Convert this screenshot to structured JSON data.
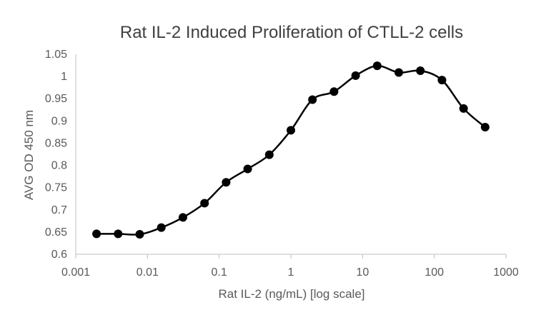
{
  "chart_data": {
    "type": "line",
    "title": "Rat IL-2 Induced Proliferation of CTLL-2 cells",
    "xlabel": "Rat IL-2 (ng/mL) [log scale]",
    "ylabel": "AVG OD 450 nm",
    "x_scale": "log",
    "xlim": [
      0.001,
      1000
    ],
    "ylim": [
      0.6,
      1.05
    ],
    "x_ticks": [
      "0.001",
      "0.01",
      "0.1",
      "1",
      "10",
      "100",
      "1000"
    ],
    "y_ticks": [
      "0.6",
      "0.65",
      "0.7",
      "0.75",
      "0.8",
      "0.85",
      "0.9",
      "0.95",
      "1",
      "1.05"
    ],
    "grid": false,
    "legend": "none",
    "line_style": "smooth",
    "colors": {
      "series": "#000000",
      "axis": "#bfbfbf",
      "text": "#595959",
      "title": "#404040"
    },
    "series": [
      {
        "x": [
          0.00195,
          0.0039,
          0.0078,
          0.0156,
          0.03125,
          0.0625,
          0.125,
          0.25,
          0.5,
          1,
          2,
          4,
          8,
          16,
          32,
          64,
          128,
          256,
          512
        ],
        "y": [
          0.646,
          0.646,
          0.645,
          0.66,
          0.683,
          0.715,
          0.762,
          0.792,
          0.824,
          0.879,
          0.948,
          0.966,
          1.002,
          1.024,
          1.009,
          1.013,
          0.992,
          0.928,
          0.886
        ]
      }
    ]
  }
}
